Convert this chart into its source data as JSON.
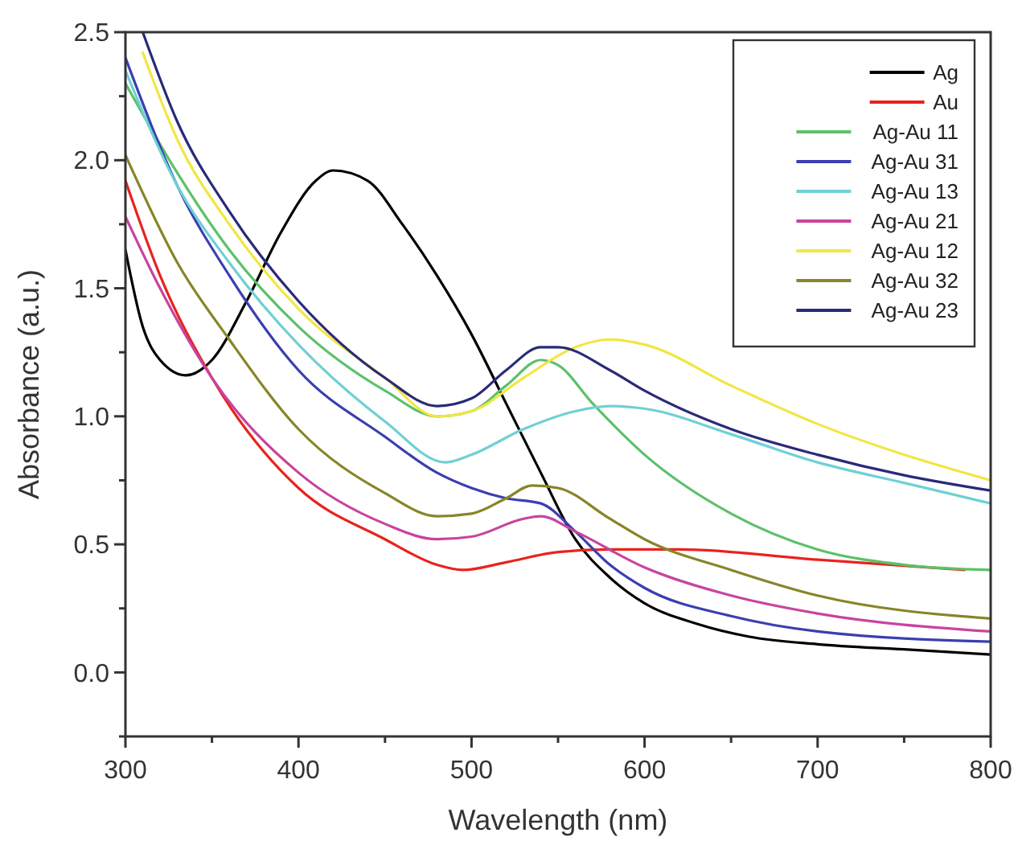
{
  "chart_data": {
    "type": "line",
    "xlabel": "Wavelength (nm)",
    "ylabel": "Absorbance (a.u.)",
    "xlim": [
      300,
      800
    ],
    "xticks": [
      300,
      {
        "value": 350,
        "label": null
      },
      400,
      {
        "value": 450,
        "label": null
      },
      500,
      {
        "value": 550,
        "label": null
      },
      600,
      {
        "value": 650,
        "label": null
      },
      700,
      {
        "value": 750,
        "label": null
      },
      800
    ],
    "ylim": [
      -0.25,
      2.5
    ],
    "yticks": [
      {
        "value": -0.25,
        "label": null
      },
      "0.0",
      {
        "value": 0.25,
        "label": null
      },
      0.5,
      {
        "value": 0.75,
        "label": null
      },
      "1.0",
      {
        "value": 1.25,
        "label": null
      },
      1.5,
      {
        "value": 1.75,
        "label": null
      },
      "2.0",
      {
        "value": 2.25,
        "label": null
      },
      2.5
    ],
    "grid": false,
    "legend": "top right",
    "line_style": "solid",
    "marker": "none",
    "series": [
      {
        "name": "Ag",
        "color": "#000000",
        "x": [
          300,
          310,
          320,
          335,
          350,
          370,
          390,
          410,
          420,
          440,
          460,
          480,
          500,
          520,
          540,
          560,
          580,
          600,
          630,
          660,
          700,
          750,
          800
        ],
        "values": [
          1.65,
          1.35,
          1.22,
          1.16,
          1.22,
          1.45,
          1.72,
          1.92,
          1.96,
          1.92,
          1.75,
          1.55,
          1.32,
          1.05,
          0.78,
          0.52,
          0.37,
          0.27,
          0.19,
          0.14,
          0.11,
          0.09,
          0.07
        ]
      },
      {
        "name": "Au",
        "color": "#e8231e",
        "x": [
          300,
          320,
          350,
          400,
          450,
          480,
          495,
          520,
          550,
          580,
          620,
          700,
          785
        ],
        "values": [
          1.92,
          1.55,
          1.15,
          0.72,
          0.52,
          0.42,
          0.4,
          0.43,
          0.47,
          0.48,
          0.48,
          0.44,
          0.4
        ]
      },
      {
        "name": "Ag-Au 11",
        "color": "#5cc16a",
        "x": [
          300,
          330,
          360,
          400,
          450,
          480,
          500,
          520,
          540,
          550,
          570,
          600,
          650,
          700,
          750,
          800
        ],
        "values": [
          2.3,
          1.95,
          1.65,
          1.35,
          1.1,
          1.0,
          1.02,
          1.12,
          1.22,
          1.2,
          1.05,
          0.85,
          0.62,
          0.48,
          0.42,
          0.4
        ]
      },
      {
        "name": "Ag-Au 31",
        "color": "#3a3fb0",
        "x": [
          300,
          330,
          360,
          400,
          450,
          480,
          500,
          520,
          540,
          560,
          580,
          600,
          650,
          700,
          800
        ],
        "values": [
          2.4,
          1.9,
          1.55,
          1.18,
          0.92,
          0.78,
          0.72,
          0.68,
          0.66,
          0.55,
          0.42,
          0.33,
          0.22,
          0.16,
          0.12
        ]
      },
      {
        "name": "Ag-Au 13",
        "color": "#6fd0d4",
        "x": [
          300,
          330,
          360,
          400,
          450,
          485,
          500,
          530,
          560,
          580,
          600,
          650,
          700,
          750,
          800
        ],
        "values": [
          2.35,
          1.9,
          1.6,
          1.28,
          0.98,
          0.82,
          0.85,
          0.95,
          1.02,
          1.04,
          1.03,
          0.93,
          0.82,
          0.74,
          0.66
        ]
      },
      {
        "name": "Ag-Au 21",
        "color": "#c8449e",
        "x": [
          300,
          320,
          350,
          400,
          450,
          480,
          500,
          530,
          540,
          560,
          600,
          650,
          700,
          800
        ],
        "values": [
          1.78,
          1.5,
          1.15,
          0.78,
          0.58,
          0.52,
          0.53,
          0.6,
          0.61,
          0.55,
          0.41,
          0.3,
          0.23,
          0.16
        ]
      },
      {
        "name": "Ag-Au 12",
        "color": "#f2e642",
        "x": [
          310,
          330,
          360,
          400,
          450,
          480,
          500,
          530,
          560,
          580,
          600,
          650,
          700,
          750,
          800
        ],
        "values": [
          2.42,
          2.08,
          1.75,
          1.42,
          1.15,
          1.0,
          1.02,
          1.15,
          1.27,
          1.3,
          1.28,
          1.12,
          0.97,
          0.85,
          0.75
        ]
      },
      {
        "name": "Ag-Au 32",
        "color": "#878528",
        "x": [
          300,
          330,
          360,
          400,
          450,
          480,
          500,
          520,
          535,
          550,
          580,
          600,
          650,
          700,
          800
        ],
        "values": [
          2.02,
          1.6,
          1.3,
          0.95,
          0.7,
          0.61,
          0.62,
          0.68,
          0.73,
          0.72,
          0.6,
          0.52,
          0.4,
          0.3,
          0.21
        ]
      },
      {
        "name": "Ag-Au 23",
        "color": "#2a2a78",
        "x": [
          310,
          330,
          360,
          400,
          450,
          480,
          500,
          520,
          540,
          550,
          580,
          600,
          650,
          700,
          750,
          800
        ],
        "values": [
          2.5,
          2.15,
          1.8,
          1.45,
          1.15,
          1.04,
          1.07,
          1.18,
          1.27,
          1.27,
          1.18,
          1.1,
          0.95,
          0.85,
          0.77,
          0.71
        ]
      }
    ]
  }
}
